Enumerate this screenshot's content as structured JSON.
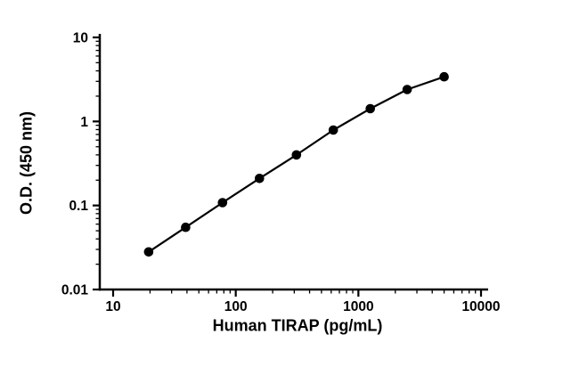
{
  "figure": {
    "background_color": "#ffffff"
  },
  "chart_data": {
    "type": "scatter",
    "subtype": "standard-curve-line-with-markers",
    "x": [
      19.5,
      39,
      78,
      156,
      312.5,
      625,
      1250,
      2500,
      5000
    ],
    "y": [
      0.028,
      0.055,
      0.108,
      0.21,
      0.4,
      0.79,
      1.42,
      2.4,
      3.4
    ],
    "xlabel": "Human TIRAP (pg/mL)",
    "ylabel": "O.D. (450 nm)",
    "xscale": "log",
    "yscale": "log",
    "xlim": [
      10,
      10000
    ],
    "ylim": [
      0.01,
      10
    ],
    "x_tick_values": [
      10,
      100,
      1000,
      10000
    ],
    "x_tick_labels": [
      "10",
      "100",
      "1000",
      "10000"
    ],
    "y_tick_values": [
      0.01,
      0.1,
      1,
      10
    ],
    "y_tick_labels": [
      "0.01",
      "0.1",
      "1",
      "10"
    ],
    "grid": "off",
    "legend": "none",
    "line_color": "#000000",
    "marker_color": "#000000",
    "axis_color": "#000000"
  }
}
